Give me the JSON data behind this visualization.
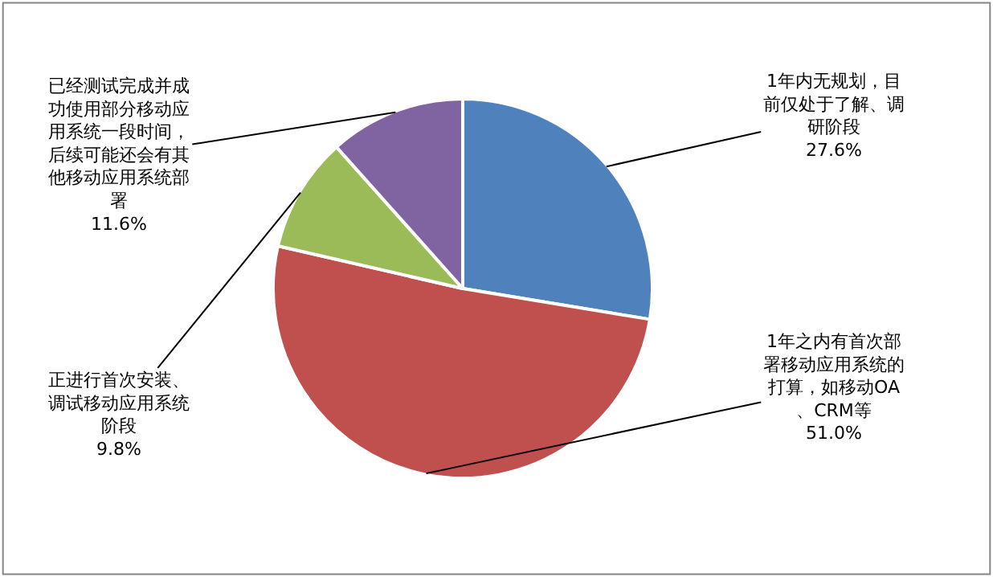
{
  "chart_data": {
    "type": "pie",
    "categories": [
      "1年内无规划，目前仅处于了解、调研阶段",
      "1年之内有首次部署移动应用系统的打算，如移动OA、CRM等",
      "正进行首次安装、调试移动应用系统阶段",
      "已经测试完成并成功使用部分移动应用系统一段时间，后续可能还会有其他移动应用系统部署"
    ],
    "values": [
      27.6,
      51.0,
      9.8,
      11.6
    ],
    "colors": [
      "#4f81bd",
      "#c0504d",
      "#9bbb59",
      "#8064a2"
    ],
    "value_labels": [
      "27.6%",
      "51.0%",
      "9.8%",
      "11.6%"
    ],
    "legend": false
  }
}
